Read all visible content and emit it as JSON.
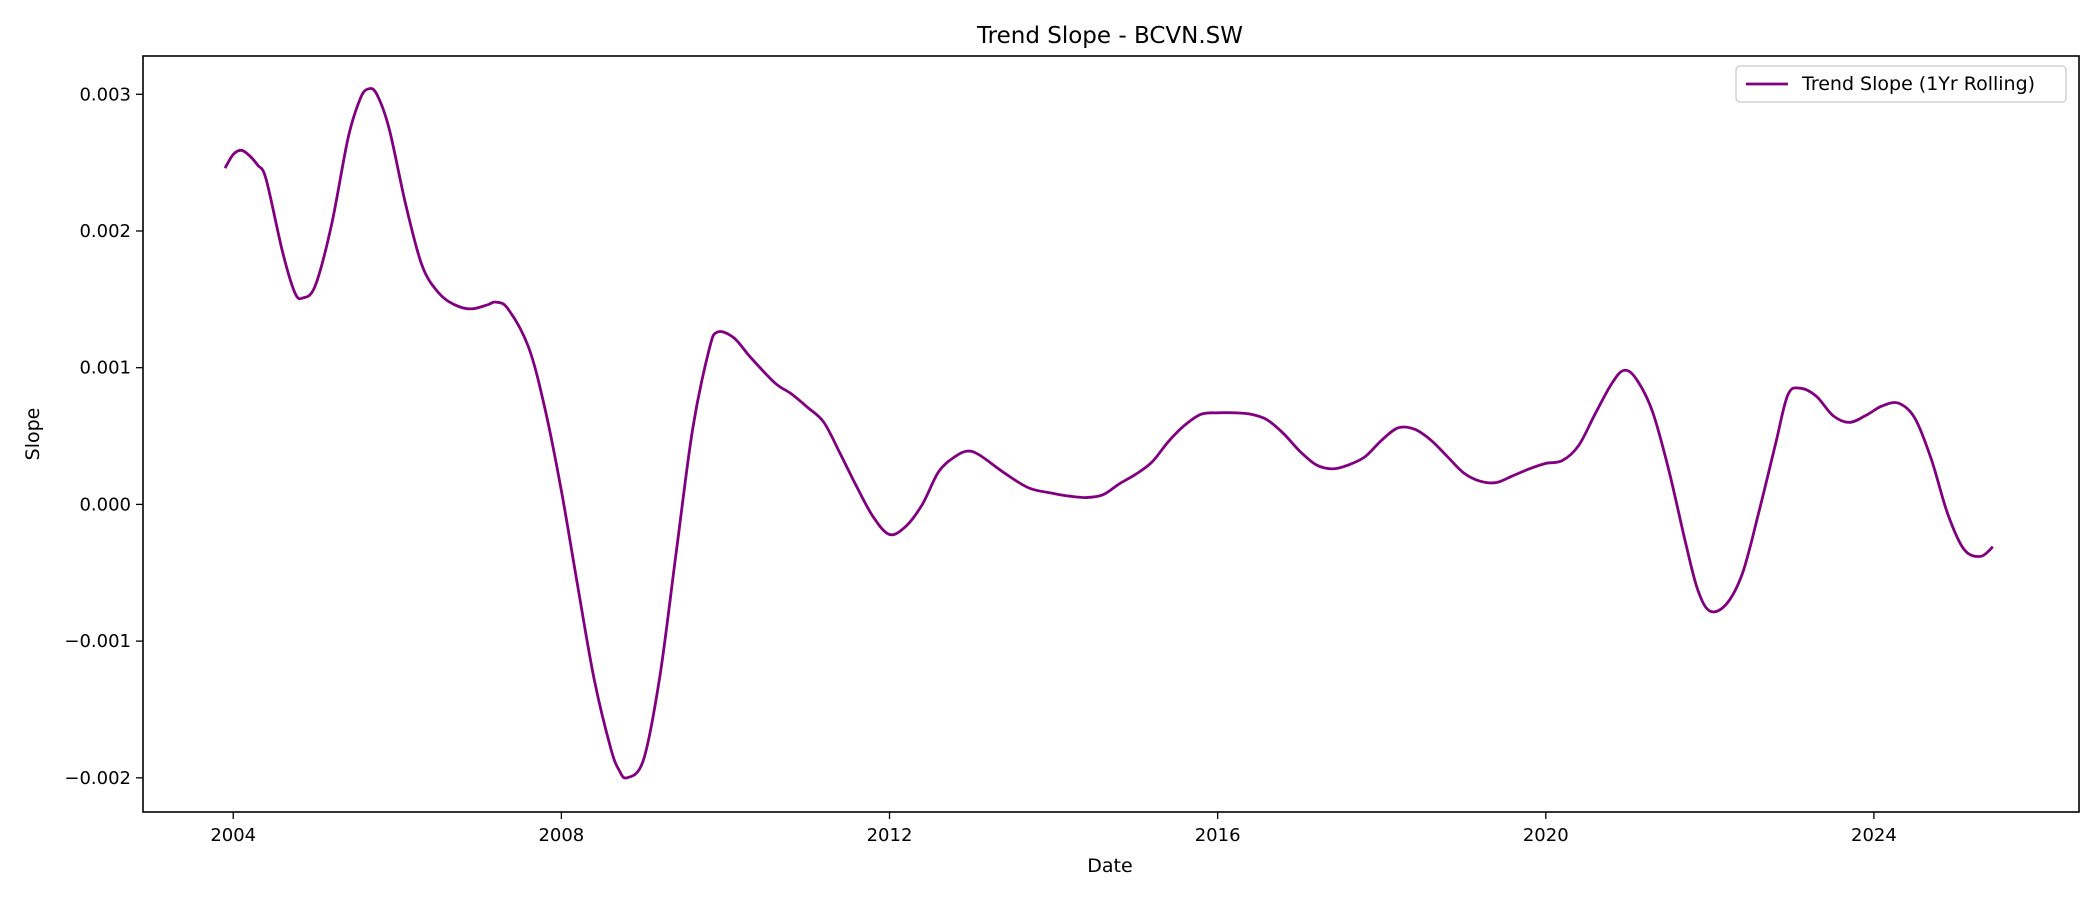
{
  "chart_data": {
    "type": "line",
    "title": "Trend Slope - BCVN.SW",
    "xlabel": "Date",
    "ylabel": "Slope",
    "xlim": [
      2002.9,
      2026.5
    ],
    "ylim": [
      -0.00225,
      0.00328
    ],
    "x_ticks": [
      2004,
      2008,
      2012,
      2016,
      2020,
      2024
    ],
    "x_tick_labels": [
      "2004",
      "2008",
      "2012",
      "2016",
      "2020",
      "2024"
    ],
    "y_ticks": [
      -0.002,
      -0.001,
      0.0,
      0.001,
      0.002,
      0.003
    ],
    "y_tick_labels": [
      "−0.002",
      "−0.001",
      "0.000",
      "0.001",
      "0.002",
      "0.003"
    ],
    "grid": false,
    "legend_position": "top-right",
    "series": [
      {
        "name": "Trend Slope (1Yr Rolling)",
        "color": "#800080",
        "x": [
          2003.9,
          2004.0,
          2004.1,
          2004.2,
          2004.3,
          2004.4,
          2004.6,
          2004.75,
          2004.85,
          2005.0,
          2005.2,
          2005.4,
          2005.55,
          2005.65,
          2005.75,
          2005.9,
          2006.1,
          2006.3,
          2006.5,
          2006.7,
          2006.9,
          2007.1,
          2007.2,
          2007.35,
          2007.6,
          2007.8,
          2008.0,
          2008.2,
          2008.4,
          2008.6,
          2008.7,
          2008.8,
          2009.0,
          2009.2,
          2009.4,
          2009.6,
          2009.8,
          2009.9,
          2010.1,
          2010.3,
          2010.6,
          2010.8,
          2011.0,
          2011.2,
          2011.4,
          2011.6,
          2011.8,
          2012.0,
          2012.2,
          2012.4,
          2012.6,
          2012.8,
          2012.95,
          2013.1,
          2013.4,
          2013.7,
          2014.0,
          2014.2,
          2014.4,
          2014.6,
          2014.8,
          2015.0,
          2015.2,
          2015.4,
          2015.6,
          2015.8,
          2016.0,
          2016.2,
          2016.4,
          2016.6,
          2016.8,
          2017.0,
          2017.2,
          2017.4,
          2017.6,
          2017.8,
          2018.0,
          2018.2,
          2018.4,
          2018.6,
          2018.8,
          2019.0,
          2019.2,
          2019.4,
          2019.6,
          2019.8,
          2020.0,
          2020.2,
          2020.4,
          2020.6,
          2020.8,
          2020.95,
          2021.1,
          2021.3,
          2021.5,
          2021.7,
          2021.85,
          2022.0,
          2022.2,
          2022.4,
          2022.6,
          2022.8,
          2022.95,
          2023.1,
          2023.3,
          2023.5,
          2023.7,
          2023.9,
          2024.1,
          2024.3,
          2024.5,
          2024.7,
          2024.9,
          2025.1,
          2025.3,
          2025.45
        ],
        "y": [
          0.00246,
          0.00256,
          0.00259,
          0.00255,
          0.00248,
          0.00238,
          0.00185,
          0.00155,
          0.00151,
          0.0016,
          0.00205,
          0.00268,
          0.00297,
          0.00304,
          0.003,
          0.00275,
          0.0022,
          0.00175,
          0.00155,
          0.00146,
          0.00143,
          0.00146,
          0.00148,
          0.00143,
          0.00115,
          0.0007,
          0.0001,
          -0.0006,
          -0.00128,
          -0.00178,
          -0.00194,
          -0.002,
          -0.00187,
          -0.00126,
          -0.00035,
          0.00055,
          0.00113,
          0.00126,
          0.00122,
          0.00108,
          0.00089,
          0.00081,
          0.00071,
          0.0006,
          0.00037,
          0.00013,
          -9e-05,
          -0.00022,
          -0.00016,
          0.0,
          0.00024,
          0.00035,
          0.00039,
          0.00036,
          0.00023,
          0.00012,
          8e-05,
          6e-05,
          5e-05,
          7e-05,
          0.00015,
          0.00022,
          0.00031,
          0.00046,
          0.00058,
          0.00066,
          0.00067,
          0.00067,
          0.00066,
          0.00062,
          0.00052,
          0.00039,
          0.00029,
          0.00026,
          0.00029,
          0.00035,
          0.00047,
          0.00056,
          0.00055,
          0.00047,
          0.00035,
          0.00023,
          0.00017,
          0.00016,
          0.00021,
          0.00026,
          0.0003,
          0.00032,
          0.00043,
          0.00066,
          0.00088,
          0.00098,
          0.00092,
          0.00068,
          0.00025,
          -0.00027,
          -0.00062,
          -0.00078,
          -0.00073,
          -0.0005,
          -5e-05,
          0.00044,
          0.0008,
          0.00085,
          0.00079,
          0.00065,
          0.0006,
          0.00065,
          0.00072,
          0.00074,
          0.00063,
          0.00033,
          -7e-05,
          -0.00033,
          -0.00038,
          -0.00031
        ]
      }
    ]
  }
}
